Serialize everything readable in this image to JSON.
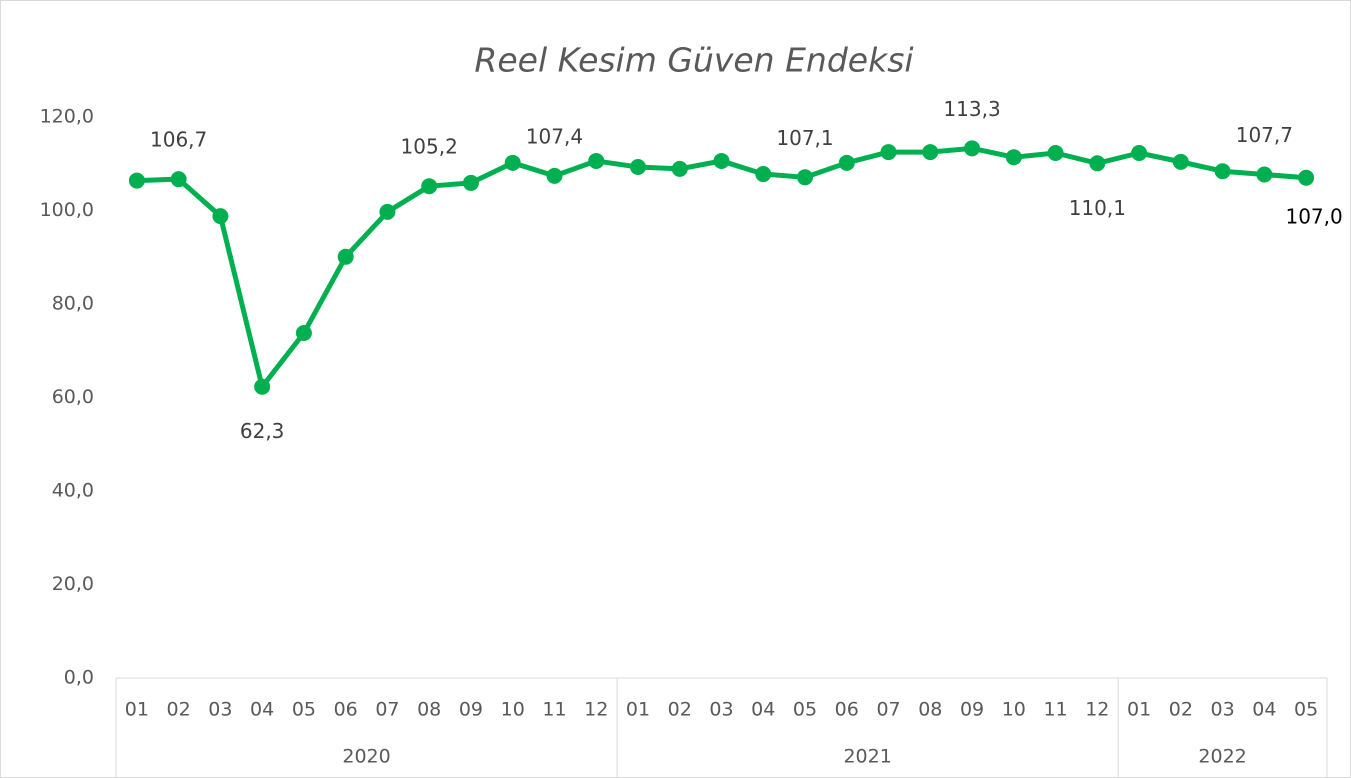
{
  "chart_data": {
    "type": "line",
    "title": "Reel Kesim Güven Endeksi",
    "groups": [
      {
        "name": "2020",
        "categories": [
          "01",
          "02",
          "03",
          "04",
          "05",
          "06",
          "07",
          "08",
          "09",
          "10",
          "11",
          "12"
        ]
      },
      {
        "name": "2021",
        "categories": [
          "01",
          "02",
          "03",
          "04",
          "05",
          "06",
          "07",
          "08",
          "09",
          "10",
          "11",
          "12"
        ]
      },
      {
        "name": "2022",
        "categories": [
          "01",
          "02",
          "03",
          "04",
          "05"
        ]
      }
    ],
    "values": [
      106.4,
      106.7,
      98.8,
      62.3,
      73.8,
      90.1,
      99.7,
      105.2,
      105.9,
      110.2,
      107.4,
      110.6,
      109.3,
      108.9,
      110.6,
      107.8,
      107.1,
      110.2,
      112.5,
      112.5,
      113.3,
      111.4,
      112.3,
      110.1,
      112.3,
      110.4,
      108.4,
      107.7,
      107.0
    ],
    "value_labels": [
      null,
      "106,7",
      null,
      "62,3",
      null,
      null,
      null,
      "105,2",
      null,
      null,
      "107,4",
      null,
      null,
      null,
      null,
      null,
      "107,1",
      null,
      null,
      null,
      "113,3",
      null,
      null,
      "110,1",
      null,
      null,
      null,
      "107,7",
      "107,0"
    ],
    "color": "#00b050",
    "ylim": [
      0,
      120
    ],
    "yticks": [
      {
        "value": 0,
        "label": "0,0"
      },
      {
        "value": 20,
        "label": "20,0"
      },
      {
        "value": 40,
        "label": "40,0"
      },
      {
        "value": 60,
        "label": "60,0"
      },
      {
        "value": 80,
        "label": "80,0"
      },
      {
        "value": 100,
        "label": "100,0"
      },
      {
        "value": 120,
        "label": "120,0"
      }
    ],
    "grid": false
  }
}
